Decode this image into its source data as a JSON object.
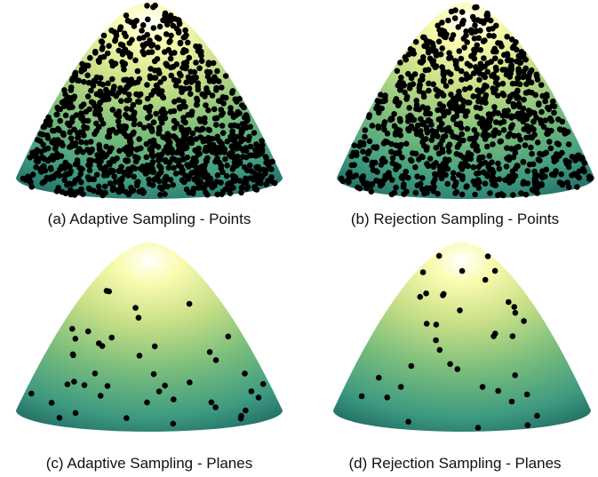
{
  "captions": [
    "(a) Adaptive Sampling - Points",
    "(b) Rejection Sampling - Points",
    "(c) Adaptive Sampling - Planes",
    "(d) Rejection Sampling - Planes"
  ]
}
